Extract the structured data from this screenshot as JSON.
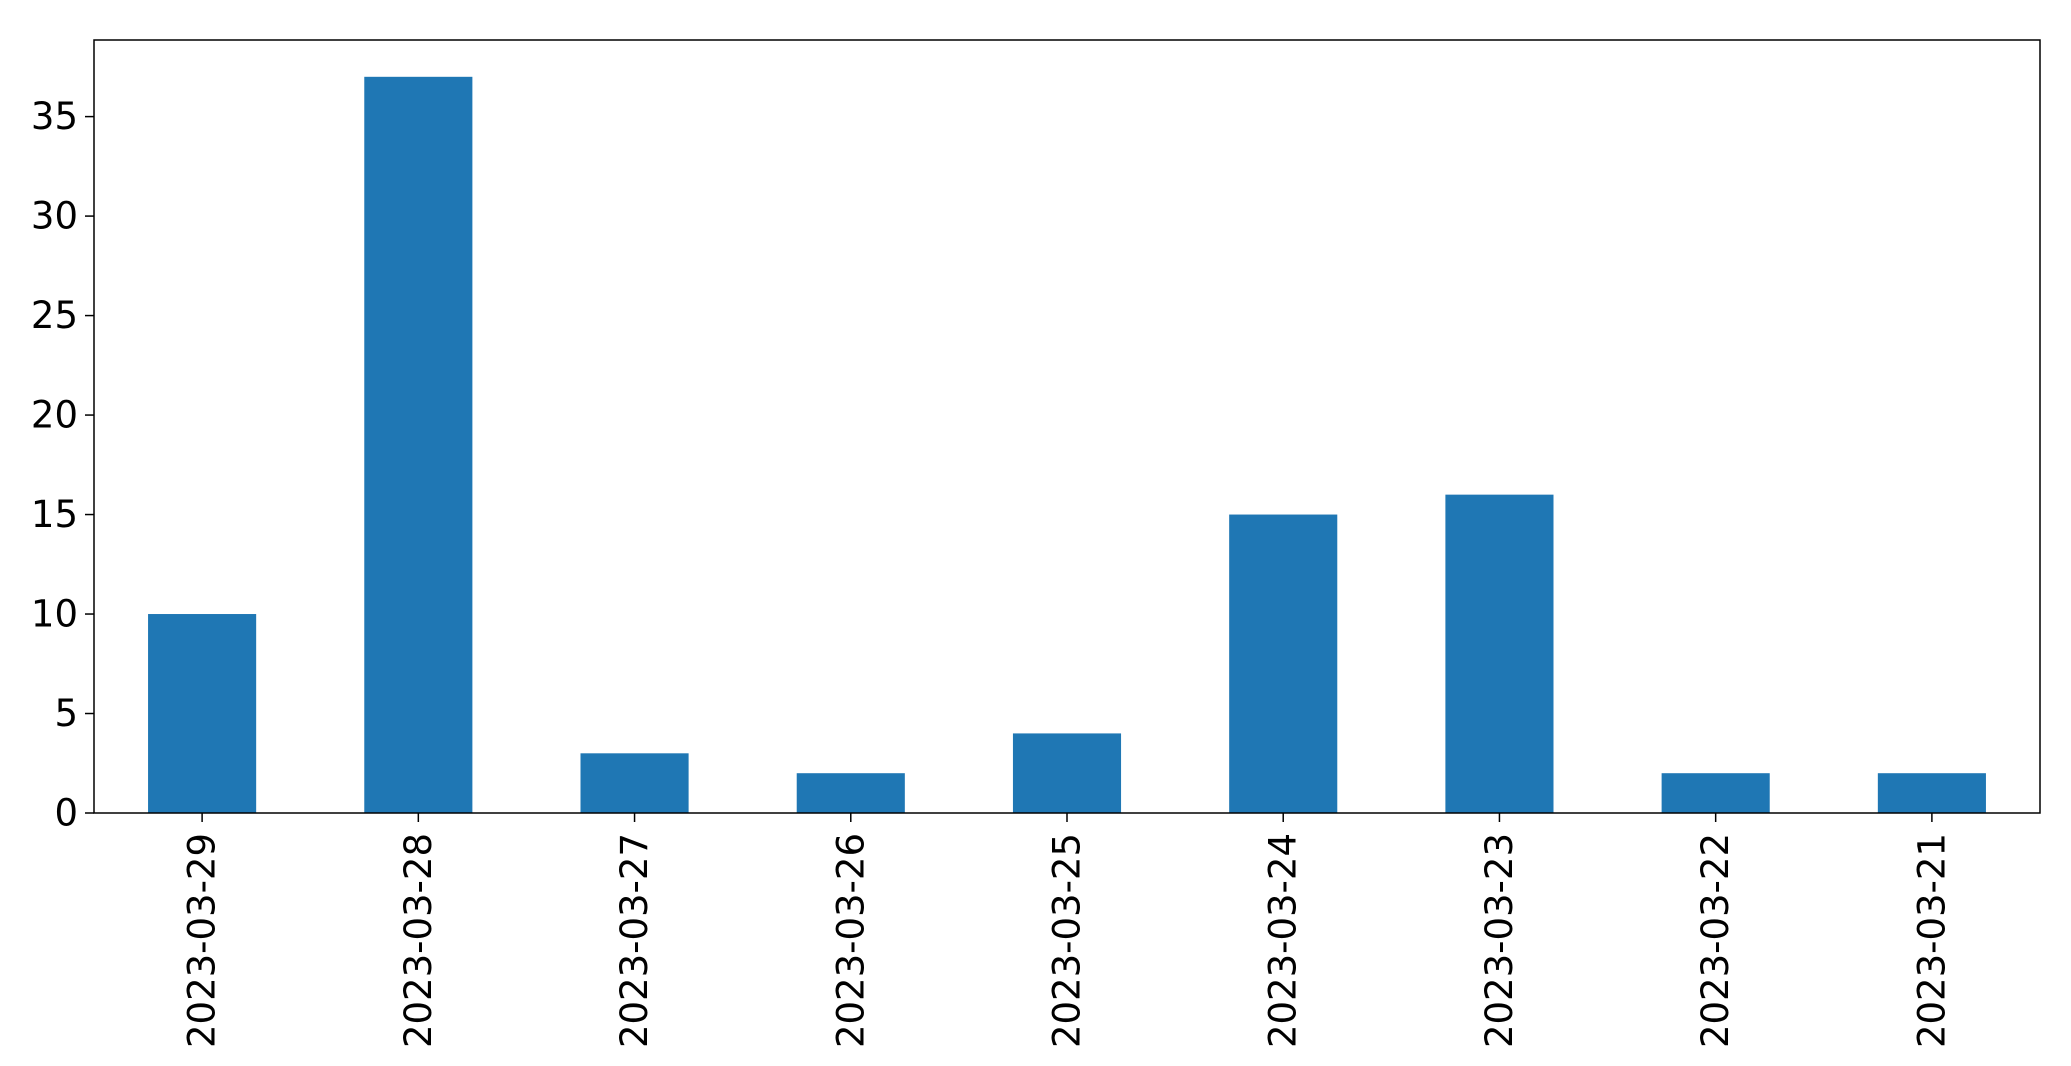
{
  "chart_data": {
    "type": "bar",
    "title": "",
    "xlabel": "",
    "ylabel": "",
    "categories": [
      "2023-03-29",
      "2023-03-28",
      "2023-03-27",
      "2023-03-26",
      "2023-03-25",
      "2023-03-24",
      "2023-03-23",
      "2023-03-22",
      "2023-03-21"
    ],
    "values": [
      10,
      37,
      3,
      2,
      4,
      15,
      16,
      2,
      2
    ],
    "ylim": [
      0,
      38.85
    ],
    "yticks": [
      0,
      5,
      10,
      15,
      20,
      25,
      30,
      35
    ],
    "grid": false,
    "legend": "none",
    "bar_color": "#1f77b4"
  }
}
